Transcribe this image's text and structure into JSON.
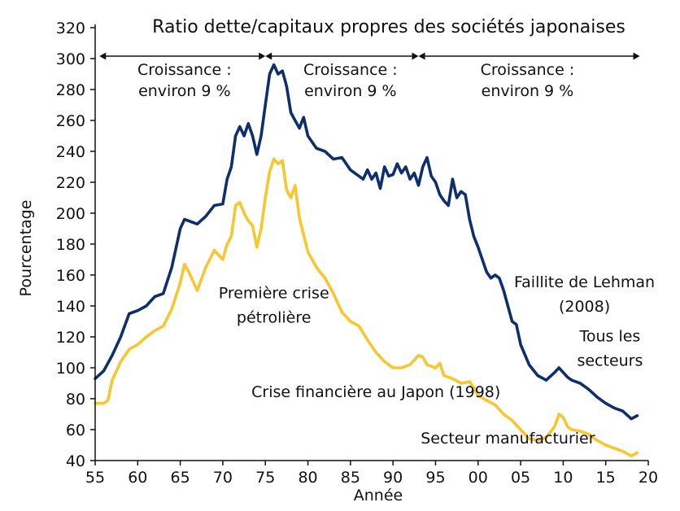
{
  "chart_data": {
    "type": "line",
    "title": "Ratio dette/capitaux propres des sociétés japonaises",
    "xlabel": "Année",
    "ylabel": "Pourcentage",
    "xlim": [
      1955,
      2020
    ],
    "ylim": [
      40,
      320
    ],
    "grid": false,
    "x_ticks": [
      1955,
      1960,
      1965,
      1970,
      1975,
      1980,
      1985,
      1990,
      1995,
      2000,
      2005,
      2010,
      2015,
      2020
    ],
    "x_tick_labels": [
      "55",
      "60",
      "65",
      "70",
      "75",
      "80",
      "85",
      "90",
      "95",
      "00",
      "05",
      "10",
      "15",
      "20"
    ],
    "y_ticks": [
      40,
      60,
      80,
      100,
      120,
      140,
      160,
      180,
      200,
      220,
      240,
      260,
      280,
      300,
      320
    ],
    "y_tick_labels": [
      "40",
      "60",
      "80",
      "100",
      "120",
      "140",
      "160",
      "180",
      "200",
      "220",
      "240",
      "260",
      "280",
      "300",
      "320"
    ],
    "colors": {
      "all": "#0e2f6b",
      "manufacturing": "#f8c630",
      "text": "#111111"
    },
    "series": [
      {
        "key": "all",
        "name": "Tous les secteurs",
        "points": [
          [
            1955.0,
            93
          ],
          [
            1956.0,
            98
          ],
          [
            1957.0,
            108
          ],
          [
            1958.0,
            120
          ],
          [
            1959.0,
            135
          ],
          [
            1960.0,
            137
          ],
          [
            1961.0,
            140
          ],
          [
            1962.0,
            146
          ],
          [
            1963.0,
            148
          ],
          [
            1964.0,
            165
          ],
          [
            1965.0,
            190
          ],
          [
            1965.5,
            196
          ],
          [
            1966.0,
            195
          ],
          [
            1967.0,
            193
          ],
          [
            1968.0,
            198
          ],
          [
            1969.0,
            205
          ],
          [
            1970.0,
            206
          ],
          [
            1970.5,
            222
          ],
          [
            1971.0,
            230
          ],
          [
            1971.5,
            250
          ],
          [
            1972.0,
            256
          ],
          [
            1972.5,
            250
          ],
          [
            1973.0,
            258
          ],
          [
            1973.5,
            250
          ],
          [
            1974.0,
            238
          ],
          [
            1974.5,
            250
          ],
          [
            1975.0,
            270
          ],
          [
            1975.5,
            290
          ],
          [
            1976.0,
            296
          ],
          [
            1976.5,
            290
          ],
          [
            1977.0,
            292
          ],
          [
            1977.5,
            282
          ],
          [
            1978.0,
            265
          ],
          [
            1978.5,
            260
          ],
          [
            1979.0,
            255
          ],
          [
            1979.5,
            262
          ],
          [
            1980.0,
            250
          ],
          [
            1981.0,
            242
          ],
          [
            1982.0,
            240
          ],
          [
            1983.0,
            235
          ],
          [
            1984.0,
            236
          ],
          [
            1985.0,
            228
          ],
          [
            1986.0,
            224
          ],
          [
            1986.5,
            222
          ],
          [
            1987.0,
            228
          ],
          [
            1987.5,
            222
          ],
          [
            1988.0,
            226
          ],
          [
            1988.5,
            216
          ],
          [
            1989.0,
            230
          ],
          [
            1989.5,
            224
          ],
          [
            1990.0,
            225
          ],
          [
            1990.5,
            232
          ],
          [
            1991.0,
            226
          ],
          [
            1991.5,
            230
          ],
          [
            1992.0,
            222
          ],
          [
            1992.5,
            226
          ],
          [
            1993.0,
            218
          ],
          [
            1993.5,
            230
          ],
          [
            1994.0,
            236
          ],
          [
            1994.5,
            224
          ],
          [
            1995.0,
            220
          ],
          [
            1995.5,
            212
          ],
          [
            1996.0,
            208
          ],
          [
            1996.5,
            205
          ],
          [
            1997.0,
            222
          ],
          [
            1997.5,
            210
          ],
          [
            1998.0,
            214
          ],
          [
            1998.5,
            212
          ],
          [
            1999.0,
            196
          ],
          [
            1999.5,
            185
          ],
          [
            2000.0,
            178
          ],
          [
            2001.0,
            162
          ],
          [
            2001.5,
            158
          ],
          [
            2002.0,
            160
          ],
          [
            2002.5,
            158
          ],
          [
            2003.0,
            150
          ],
          [
            2003.5,
            140
          ],
          [
            2004.0,
            130
          ],
          [
            2004.5,
            128
          ],
          [
            2005.0,
            115
          ],
          [
            2006.0,
            102
          ],
          [
            2007.0,
            95
          ],
          [
            2008.0,
            92
          ],
          [
            2009.0,
            97
          ],
          [
            2009.5,
            100
          ],
          [
            2010.0,
            97
          ],
          [
            2010.5,
            94
          ],
          [
            2011.0,
            92
          ],
          [
            2012.0,
            90
          ],
          [
            2013.0,
            86
          ],
          [
            2014.0,
            81
          ],
          [
            2015.0,
            77
          ],
          [
            2016.0,
            74
          ],
          [
            2017.0,
            72
          ],
          [
            2018.0,
            67
          ],
          [
            2018.7,
            69
          ]
        ]
      },
      {
        "key": "manufacturing",
        "name": "Secteur manufacturier",
        "points": [
          [
            1955.0,
            77
          ],
          [
            1956.0,
            77
          ],
          [
            1956.5,
            79
          ],
          [
            1957.0,
            92
          ],
          [
            1958.0,
            104
          ],
          [
            1959.0,
            112
          ],
          [
            1960.0,
            115
          ],
          [
            1961.0,
            120
          ],
          [
            1962.0,
            124
          ],
          [
            1963.0,
            127
          ],
          [
            1964.0,
            138
          ],
          [
            1965.0,
            155
          ],
          [
            1965.5,
            167
          ],
          [
            1966.0,
            162
          ],
          [
            1967.0,
            150
          ],
          [
            1968.0,
            165
          ],
          [
            1969.0,
            176
          ],
          [
            1970.0,
            170
          ],
          [
            1970.5,
            180
          ],
          [
            1971.0,
            185
          ],
          [
            1971.5,
            205
          ],
          [
            1972.0,
            207
          ],
          [
            1972.5,
            200
          ],
          [
            1973.0,
            195
          ],
          [
            1973.5,
            192
          ],
          [
            1974.0,
            178
          ],
          [
            1974.5,
            190
          ],
          [
            1975.0,
            210
          ],
          [
            1975.5,
            227
          ],
          [
            1976.0,
            235
          ],
          [
            1976.5,
            232
          ],
          [
            1977.0,
            234
          ],
          [
            1977.5,
            215
          ],
          [
            1978.0,
            210
          ],
          [
            1978.5,
            218
          ],
          [
            1979.0,
            197
          ],
          [
            1980.0,
            175
          ],
          [
            1981.0,
            165
          ],
          [
            1982.0,
            158
          ],
          [
            1983.0,
            148
          ],
          [
            1984.0,
            136
          ],
          [
            1985.0,
            130
          ],
          [
            1986.0,
            127
          ],
          [
            1987.0,
            118
          ],
          [
            1988.0,
            110
          ],
          [
            1989.0,
            104
          ],
          [
            1990.0,
            100
          ],
          [
            1991.0,
            100
          ],
          [
            1992.0,
            102
          ],
          [
            1993.0,
            108
          ],
          [
            1993.5,
            107
          ],
          [
            1994.0,
            102
          ],
          [
            1995.0,
            100
          ],
          [
            1995.5,
            103
          ],
          [
            1996.0,
            95
          ],
          [
            1997.0,
            93
          ],
          [
            1998.0,
            90
          ],
          [
            1999.0,
            91
          ],
          [
            1999.5,
            87
          ],
          [
            2000.0,
            82
          ],
          [
            2001.0,
            79
          ],
          [
            2002.0,
            76
          ],
          [
            2003.0,
            70
          ],
          [
            2004.0,
            66
          ],
          [
            2005.0,
            60
          ],
          [
            2006.0,
            54
          ],
          [
            2007.0,
            53
          ],
          [
            2008.0,
            55
          ],
          [
            2009.0,
            62
          ],
          [
            2009.5,
            70
          ],
          [
            2010.0,
            68
          ],
          [
            2010.5,
            62
          ],
          [
            2011.0,
            60
          ],
          [
            2012.0,
            59
          ],
          [
            2013.0,
            57
          ],
          [
            2014.0,
            53
          ],
          [
            2015.0,
            50
          ],
          [
            2016.0,
            48
          ],
          [
            2017.0,
            46
          ],
          [
            2018.0,
            43
          ],
          [
            2018.7,
            45
          ]
        ]
      }
    ],
    "periods": [
      {
        "from": 1955.5,
        "to": 1975.0,
        "label_line1": "Croissance :",
        "label_line2": "environ 9 %",
        "label_x": 1965.5
      },
      {
        "from": 1975.0,
        "to": 1993.0,
        "label_line1": "Croissance :",
        "label_line2": "environ 9 %",
        "label_x": 1985.0
      },
      {
        "from": 1993.0,
        "to": 2019.0,
        "label_line1": "Croissance :",
        "label_line2": "environ 9 %",
        "label_x": 2005.8
      }
    ],
    "annotations": [
      {
        "key": "oil_crisis",
        "line1": "Première crise",
        "line2": "pétrolière",
        "x": 1976.0,
        "y": 145
      },
      {
        "key": "japan_crisis",
        "text": "Crise financière au Japon (1998)",
        "x": 1988.0,
        "y": 81
      },
      {
        "key": "lehman",
        "line1": "Faillite de Lehman",
        "line2": "(2008)",
        "x": 2012.5,
        "y": 152
      },
      {
        "key": "all_sectors",
        "line1": "Tous les",
        "line2": "secteurs",
        "x": 2015.5,
        "y": 117
      },
      {
        "key": "manufacturing",
        "text": "Secteur manufacturier",
        "x": 2003.5,
        "y": 51
      }
    ]
  }
}
